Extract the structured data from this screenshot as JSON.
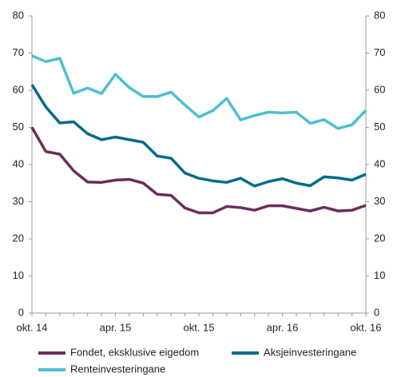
{
  "chart_data": {
    "type": "line",
    "categories": [
      "okt. 14",
      null,
      null,
      null,
      null,
      null,
      "apr. 15",
      null,
      null,
      null,
      null,
      null,
      "okt. 15",
      null,
      null,
      null,
      null,
      null,
      "apr. 16",
      null,
      null,
      null,
      null,
      null,
      "okt. 16"
    ],
    "series": [
      {
        "name": "Fondet, eksklusive eigedom",
        "color": "#6b2d5c",
        "values": [
          50,
          43.5,
          42.8,
          38.3,
          35.3,
          35.2,
          35.8,
          36,
          35,
          32,
          31.7,
          28.3,
          27,
          27,
          28.7,
          28.4,
          27.7,
          28.9,
          28.9,
          28.2,
          27.5,
          28.5,
          27.5,
          27.7,
          29
        ]
      },
      {
        "name": "Aksjeinvesteringane",
        "color": "#006b8a",
        "values": [
          61.5,
          55.5,
          51.2,
          51.5,
          48.3,
          46.7,
          47.4,
          46.7,
          46,
          42.3,
          41.7,
          37.7,
          36.3,
          35.6,
          35.2,
          36.3,
          34.2,
          35.4,
          36.2,
          35,
          34.3,
          36.7,
          36.4,
          35.8,
          37.4
        ]
      },
      {
        "name": "Renteinvesteringane",
        "color": "#4dbfcf",
        "values": [
          69.3,
          67.7,
          68.6,
          59.2,
          60.6,
          59.1,
          64.3,
          60.7,
          58.3,
          58.3,
          59.5,
          56,
          52.8,
          54.5,
          57.8,
          52,
          53.2,
          54.1,
          53.9,
          54.1,
          51.1,
          52.1,
          49.7,
          50.7,
          54.6
        ]
      }
    ],
    "ylim": [
      0,
      80
    ],
    "yticks": [
      0,
      10,
      20,
      30,
      40,
      50,
      60,
      70,
      80
    ],
    "y2lim": [
      0,
      80
    ],
    "y2ticks": [
      0,
      10,
      20,
      30,
      40,
      50,
      60,
      70,
      80
    ],
    "grid": false
  }
}
